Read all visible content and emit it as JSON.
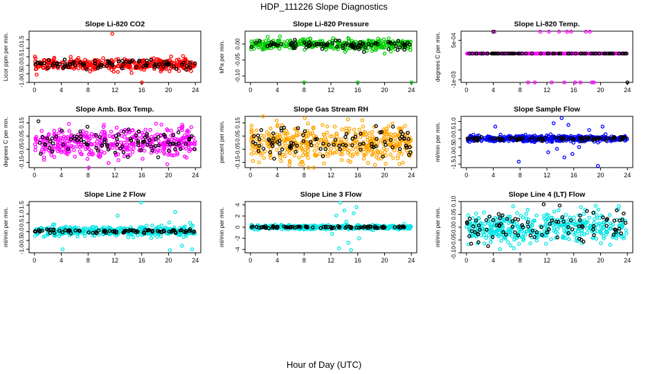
{
  "figure": {
    "title": "HDP_111226  Slope Diagnostics",
    "xlabel": "Hour of Day (UTC)"
  },
  "colors": {
    "reference_series": "#000000"
  },
  "chart_data": [
    {
      "type": "scatter",
      "title": "Slope Li-820 CO2",
      "ylabel": "Licor ppm per min.",
      "xlim": [
        -0.8,
        24.8
      ],
      "ylim": [
        -1.0,
        2.0
      ],
      "xticks": [
        "0",
        "4",
        "8",
        "12",
        "16",
        "20",
        "24"
      ],
      "xtick_values": [
        0,
        4,
        8,
        12,
        16,
        20,
        24
      ],
      "yticks": [
        "-1.0",
        "-0.5",
        "0.0",
        "0.5",
        "1.0",
        "1.5"
      ],
      "ytick_values": [
        -1.0,
        -0.5,
        0.0,
        0.5,
        1.0,
        1.5
      ],
      "grid": false,
      "series": [
        {
          "color": "#ff0000",
          "mean": 0.05,
          "sd": 0.17,
          "n": 380,
          "noise": "normal",
          "outliers": [
            [
              11.6,
              1.85
            ],
            [
              16.0,
              -1.0
            ]
          ]
        },
        {
          "color": "#000000",
          "mean": 0.05,
          "sd": 0.12,
          "n": 90,
          "noise": "normal",
          "outliers": []
        }
      ]
    },
    {
      "type": "scatter",
      "title": "Slope Li-820 Pressure",
      "ylabel": "kPa per min.",
      "xlim": [
        -0.8,
        24.8
      ],
      "ylim": [
        -0.12,
        0.04
      ],
      "xticks": [
        "0",
        "4",
        "8",
        "12",
        "16",
        "20",
        "24"
      ],
      "xtick_values": [
        0,
        4,
        8,
        12,
        16,
        20,
        24
      ],
      "yticks": [
        "-0.10",
        "-0.05",
        "0.00"
      ],
      "ytick_values": [
        -0.1,
        -0.05,
        0.0
      ],
      "grid": false,
      "series": [
        {
          "color": "#00cc00",
          "mean": -0.002,
          "sd": 0.008,
          "n": 380,
          "noise": "normal",
          "outliers": [
            [
              8.0,
              -0.12
            ],
            [
              16.0,
              -0.12
            ],
            [
              24.0,
              -0.12
            ],
            [
              20.0,
              -0.03
            ]
          ]
        },
        {
          "color": "#000000",
          "mean": -0.002,
          "sd": 0.008,
          "n": 90,
          "noise": "normal",
          "outliers": []
        }
      ]
    },
    {
      "type": "scatter",
      "title": "Slope Li-820 Temp.",
      "ylabel": "degrees C per min.",
      "xlim": [
        -0.8,
        24.8
      ],
      "ylim": [
        -0.0011,
        0.00085
      ],
      "xticks": [
        "0",
        "4",
        "8",
        "12",
        "16",
        "20",
        "24"
      ],
      "xtick_values": [
        0,
        4,
        8,
        12,
        16,
        20,
        24
      ],
      "yticks": [
        "-1e-03",
        "5e-04"
      ],
      "ytick_values": [
        -0.001,
        0.0005
      ],
      "grid": false,
      "series": [
        {
          "color": "#ff00ff",
          "mean": 0.0,
          "sd": 0,
          "n": 240,
          "noise": "none",
          "outliers": [
            [
              4.2,
              0.00083
            ],
            [
              9.2,
              -0.0011
            ],
            [
              10.2,
              -0.0011
            ],
            [
              11.0,
              0.00083
            ],
            [
              12.3,
              0.00083
            ],
            [
              12.7,
              -0.0011
            ],
            [
              13.8,
              0.00083
            ],
            [
              14.6,
              -0.0011
            ],
            [
              15.0,
              0.00083
            ],
            [
              15.6,
              0.00083
            ],
            [
              16.2,
              -0.0011
            ],
            [
              17.0,
              -0.0011
            ],
            [
              17.8,
              0.00083
            ],
            [
              18.4,
              0.00083
            ],
            [
              19.0,
              -0.0011
            ],
            [
              18.7,
              -0.0011
            ]
          ]
        },
        {
          "color": "#000000",
          "mean": 0.0,
          "sd": 0,
          "n": 80,
          "noise": "none",
          "outliers": [
            [
              4.0,
              0.00083
            ],
            [
              24.0,
              -0.0011
            ]
          ]
        }
      ]
    },
    {
      "type": "scatter",
      "title": "Slope Amb. Box Temp.",
      "ylabel": "degrees C per min.",
      "xlim": [
        -0.8,
        24.8
      ],
      "ylim": [
        -0.19,
        0.2
      ],
      "xticks": [
        "0",
        "4",
        "8",
        "12",
        "16",
        "20",
        "24"
      ],
      "xtick_values": [
        0,
        4,
        8,
        12,
        16,
        20,
        24
      ],
      "yticks": [
        "-0.15",
        "-0.05",
        "0.05",
        "0.15"
      ],
      "ytick_values": [
        -0.15,
        -0.05,
        0.05,
        0.15
      ],
      "grid": false,
      "series": [
        {
          "color": "#ff00ff",
          "mean": 0.0,
          "sd": 0.055,
          "n": 420,
          "noise": "normal",
          "outliers": []
        },
        {
          "color": "#000000",
          "mean": 0.0,
          "sd": 0.05,
          "n": 90,
          "noise": "normal",
          "outliers": []
        }
      ]
    },
    {
      "type": "scatter",
      "title": "Slope Gas Stream RH",
      "ylabel": "percent per min.",
      "xlim": [
        -0.8,
        24.8
      ],
      "ylim": [
        -0.19,
        0.2
      ],
      "xticks": [
        "0",
        "4",
        "8",
        "12",
        "16",
        "20",
        "24"
      ],
      "xtick_values": [
        0,
        4,
        8,
        12,
        16,
        20,
        24
      ],
      "yticks": [
        "-0.15",
        "-0.05",
        "0.05",
        "0.15"
      ],
      "ytick_values": [
        -0.15,
        -0.05,
        0.05,
        0.15
      ],
      "grid": false,
      "series": [
        {
          "color": "#ffa500",
          "mean": 0.0,
          "sd": 0.065,
          "n": 480,
          "noise": "normal",
          "outliers": []
        },
        {
          "color": "#000000",
          "mean": 0.0,
          "sd": 0.055,
          "n": 90,
          "noise": "normal",
          "outliers": []
        }
      ]
    },
    {
      "type": "scatter",
      "title": "Slope Sample Flow",
      "ylabel": "ml/min per min.",
      "xlim": [
        -0.8,
        24.8
      ],
      "ylim": [
        -1.7,
        1.3
      ],
      "xticks": [
        "0",
        "4",
        "8",
        "12",
        "16",
        "20",
        "24"
      ],
      "xtick_values": [
        0,
        4,
        8,
        12,
        16,
        20,
        24
      ],
      "yticks": [
        "-1.5",
        "-1.0",
        "-0.5",
        "0.0",
        "0.5",
        "1.0"
      ],
      "ytick_values": [
        -1.5,
        -1.0,
        -0.5,
        0.0,
        0.5,
        1.0
      ],
      "grid": false,
      "series": [
        {
          "color": "#0000ff",
          "mean": 0.0,
          "sd": 0.09,
          "n": 400,
          "noise": "normal",
          "outliers": [
            [
              4.3,
              0.7
            ],
            [
              7.8,
              -1.35
            ],
            [
              12.2,
              -0.8
            ],
            [
              13.0,
              0.9
            ],
            [
              13.5,
              -0.6
            ],
            [
              14.2,
              1.2
            ],
            [
              14.6,
              -1.1
            ],
            [
              15.2,
              0.8
            ],
            [
              15.8,
              -0.9
            ],
            [
              19.6,
              -1.6
            ],
            [
              20.3,
              0.7
            ],
            [
              16.8,
              -0.5
            ],
            [
              18.3,
              0.5
            ]
          ]
        },
        {
          "color": "#000000",
          "mean": 0.0,
          "sd": 0.06,
          "n": 90,
          "noise": "normal",
          "outliers": []
        }
      ]
    },
    {
      "type": "scatter",
      "title": "Slope Line 2 Flow",
      "ylabel": "ml/min per min.",
      "xlim": [
        -0.8,
        24.8
      ],
      "ylim": [
        -1.2,
        1.7
      ],
      "xticks": [
        "0",
        "4",
        "8",
        "12",
        "16",
        "20",
        "24"
      ],
      "xtick_values": [
        0,
        4,
        8,
        12,
        16,
        20,
        24
      ],
      "yticks": [
        "-1.0",
        "-0.5",
        "0.0",
        "0.5",
        "1.0",
        "1.5"
      ],
      "ytick_values": [
        -1.0,
        -0.5,
        0.0,
        0.5,
        1.0,
        1.5
      ],
      "grid": false,
      "series": [
        {
          "color": "#00e5e5",
          "mean": 0.02,
          "sd": 0.13,
          "n": 400,
          "noise": "normal",
          "outliers": [
            [
              4.2,
              -1.0
            ],
            [
              15.9,
              1.65
            ],
            [
              21.0,
              1.1
            ],
            [
              22.0,
              -0.8
            ],
            [
              23.5,
              -1.0
            ],
            [
              20.2,
              -1.05
            ],
            [
              12.4,
              0.9
            ],
            [
              23.2,
              0.5
            ]
          ]
        },
        {
          "color": "#000000",
          "mean": 0.02,
          "sd": 0.06,
          "n": 90,
          "noise": "normal",
          "outliers": []
        }
      ]
    },
    {
      "type": "scatter",
      "title": "Slope Line 3 Flow",
      "ylabel": "ml/min per min.",
      "xlim": [
        -0.8,
        24.8
      ],
      "ylim": [
        -4.6,
        4.6
      ],
      "xticks": [
        "0",
        "4",
        "8",
        "12",
        "16",
        "20",
        "24"
      ],
      "xtick_values": [
        0,
        4,
        8,
        12,
        16,
        20,
        24
      ],
      "yticks": [
        "-4",
        "-2",
        "0",
        "2",
        "4"
      ],
      "ytick_values": [
        -4,
        -2,
        0,
        2,
        4
      ],
      "grid": false,
      "series": [
        {
          "color": "#00e5e5",
          "mean": 0.0,
          "sd": 0.18,
          "n": 400,
          "noise": "normal",
          "outliers": [
            [
              12.8,
              2.1
            ],
            [
              13.4,
              4.4
            ],
            [
              14.0,
              3.0
            ],
            [
              14.6,
              -2.8
            ],
            [
              15.0,
              -4.1
            ],
            [
              15.4,
              2.5
            ],
            [
              13.2,
              -3.8
            ],
            [
              16.2,
              -2.0
            ],
            [
              12.2,
              -1.2
            ],
            [
              14.3,
              1.0
            ],
            [
              15.8,
              3.6
            ]
          ]
        },
        {
          "color": "#000000",
          "mean": 0.0,
          "sd": 0.1,
          "n": 90,
          "noise": "normal",
          "outliers": []
        }
      ]
    },
    {
      "type": "scatter",
      "title": "Slope Line 4 (LT) Flow",
      "ylabel": "ml/min per min.",
      "xlim": [
        -0.8,
        24.8
      ],
      "ylim": [
        -0.1,
        0.1
      ],
      "xticks": [
        "0",
        "4",
        "8",
        "12",
        "16",
        "20",
        "24"
      ],
      "xtick_values": [
        0,
        4,
        8,
        12,
        16,
        20,
        24
      ],
      "yticks": [
        "-0.10",
        "-0.05",
        "0.00",
        "0.05",
        "0.10"
      ],
      "ytick_values": [
        -0.1,
        -0.05,
        0.0,
        0.05,
        0.1
      ],
      "grid": false,
      "series": [
        {
          "color": "#00e5e5",
          "mean": 0.0,
          "sd": 0.03,
          "n": 420,
          "noise": "normal",
          "outliers": []
        },
        {
          "color": "#000000",
          "mean": 0.0,
          "sd": 0.028,
          "n": 90,
          "noise": "normal",
          "outliers": []
        }
      ]
    }
  ]
}
